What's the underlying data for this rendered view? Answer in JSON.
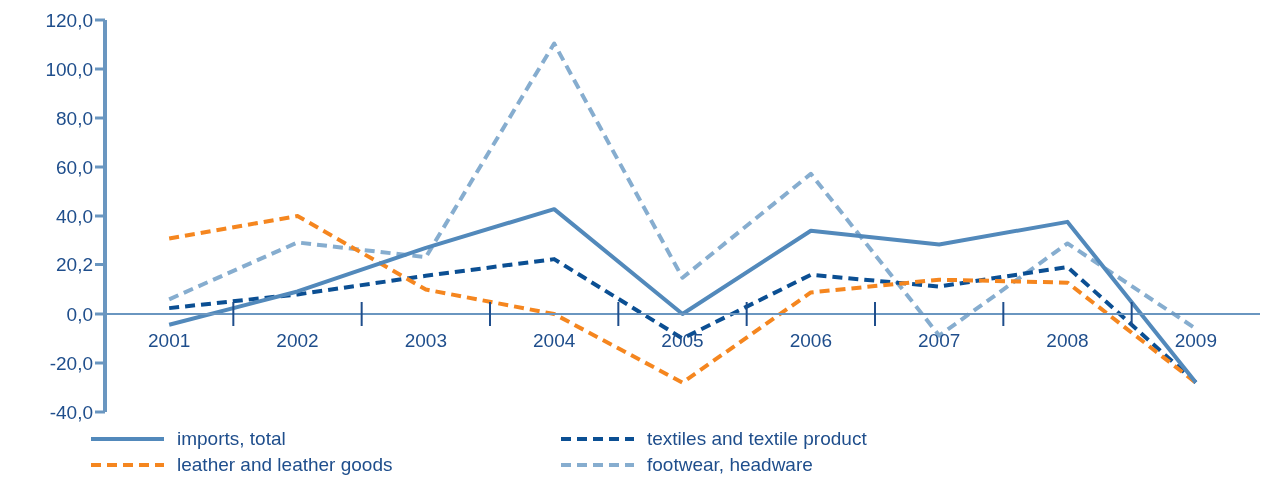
{
  "chart_data": {
    "type": "line",
    "categories": [
      "2001",
      "2002",
      "2003",
      "2004",
      "2005",
      "2006",
      "2007",
      "2008",
      "2009"
    ],
    "series": [
      {
        "name": "imports, total",
        "color": "#5289bb",
        "line_style": "solid",
        "values": [
          -4.4,
          9.2,
          27,
          42.8,
          0,
          34,
          28.4,
          37.6,
          -28
        ]
      },
      {
        "name": "leather and leather goods",
        "color": "#f5861f",
        "line_style": "dashed",
        "values": [
          30.8,
          40,
          10,
          0,
          -28,
          8.8,
          14,
          12.8,
          -28
        ]
      },
      {
        "name": "textiles and textile product",
        "color": "#0b4f93",
        "line_style": "dashed",
        "values": [
          2.4,
          8,
          15.6,
          22.4,
          -10,
          16,
          11.2,
          19.2,
          -28
        ]
      },
      {
        "name": "footwear, headware",
        "color": "#86adcf",
        "line_style": "dashed",
        "values": [
          6,
          29.2,
          23.2,
          110.4,
          14.8,
          57.2,
          -8.8,
          28.8,
          -6
        ]
      }
    ],
    "ylim": [
      -40,
      120
    ],
    "yticks": [
      {
        "value": -40,
        "label": "-40,0"
      },
      {
        "value": -20,
        "label": "-20,0"
      },
      {
        "value": 0,
        "label": "0,0"
      },
      {
        "value": 20.2,
        "label": "20,2"
      },
      {
        "value": 40,
        "label": "40,0"
      },
      {
        "value": 60,
        "label": "60,0"
      },
      {
        "value": 80,
        "label": "80,0"
      },
      {
        "value": 100,
        "label": "100,0"
      },
      {
        "value": 120,
        "label": "120,0"
      }
    ],
    "grid": false,
    "legend": "bottom",
    "marker": "none"
  }
}
